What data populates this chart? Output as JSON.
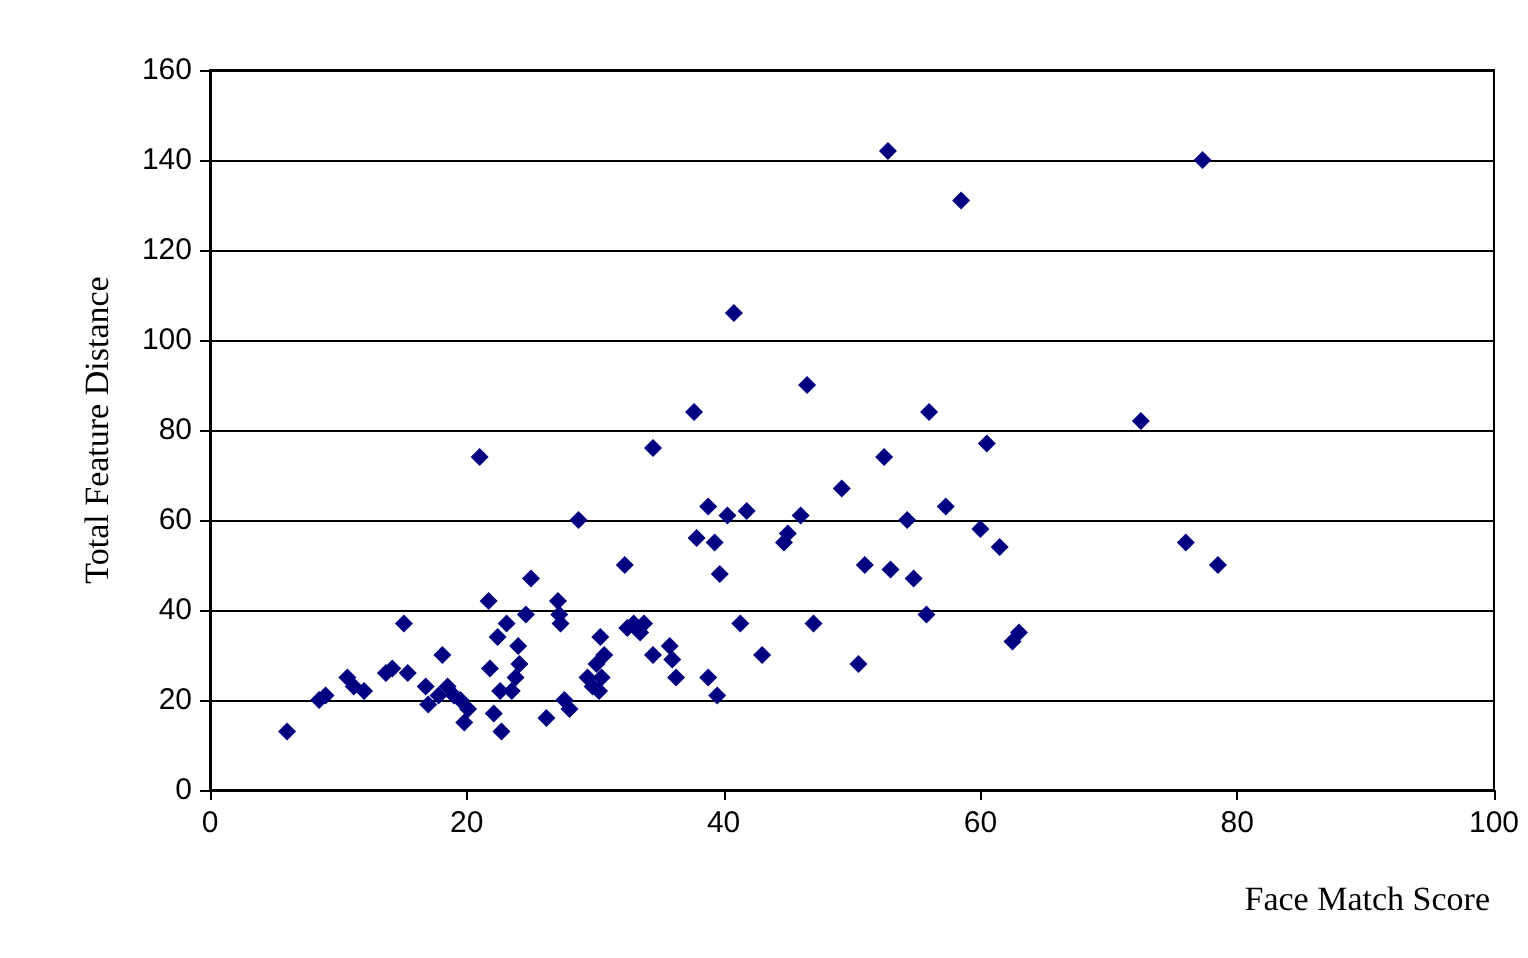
{
  "chart_data": {
    "type": "scatter",
    "xlabel": "Face Match Score",
    "ylabel": "Total Feature Distance",
    "x": [
      6,
      8.5,
      9,
      10.7,
      11.2,
      12,
      13.7,
      14.2,
      15.1,
      15.4,
      16.8,
      17,
      17.8,
      18.1,
      18.5,
      19,
      19.5,
      19.8,
      20.1,
      21,
      21.7,
      21.8,
      22.1,
      22.4,
      22.6,
      22.7,
      23.1,
      23.5,
      23.8,
      24,
      24.1,
      24.6,
      25,
      26.2,
      27.1,
      27.2,
      27.3,
      27.6,
      28,
      28.7,
      29.4,
      29.8,
      30.1,
      30.3,
      30.4,
      30.5,
      30.7,
      32.3,
      32.5,
      33,
      33.5,
      33.8,
      34.5,
      34.5,
      35.8,
      36,
      36.3,
      37.7,
      37.9,
      38.8,
      38.8,
      39.3,
      39.5,
      39.7,
      40.3,
      40.8,
      41.3,
      41.8,
      43,
      44.7,
      45,
      46,
      46.5,
      47,
      49.2,
      50.5,
      51,
      52.5,
      52.8,
      53,
      54.3,
      54.8,
      55.8,
      56,
      57.3,
      58.5,
      60,
      60.5,
      61.5,
      62.5,
      63,
      72.5,
      76,
      77.3,
      78.5
    ],
    "series": [
      {
        "color": "#000080",
        "values": [
          13,
          20,
          21,
          25,
          23,
          22,
          26,
          27,
          37,
          26,
          23,
          19,
          21,
          30,
          23,
          21,
          20,
          15,
          18,
          74,
          42,
          27,
          17,
          34,
          22,
          13,
          37,
          22,
          25,
          32,
          28,
          39,
          47,
          16,
          42,
          39,
          37,
          20,
          18,
          60,
          25,
          23,
          28,
          22,
          34,
          25,
          30,
          50,
          36,
          37,
          35,
          37,
          76,
          30,
          32,
          29,
          25,
          84,
          56,
          25,
          63,
          55,
          21,
          48,
          61,
          106,
          37,
          62,
          30,
          55,
          57,
          61,
          90,
          37,
          67,
          28,
          50,
          74,
          142,
          49,
          60,
          47,
          39,
          84,
          63,
          131,
          58,
          77,
          54,
          33,
          35,
          82,
          55,
          140,
          50
        ]
      }
    ],
    "xlim": [
      0,
      100
    ],
    "xticks": [
      0,
      20,
      40,
      60,
      80,
      100
    ],
    "ylim": [
      0,
      160
    ],
    "yticks": [
      0,
      20,
      40,
      60,
      80,
      100,
      120,
      140,
      160
    ],
    "grid": "y",
    "marker": "diamond"
  }
}
